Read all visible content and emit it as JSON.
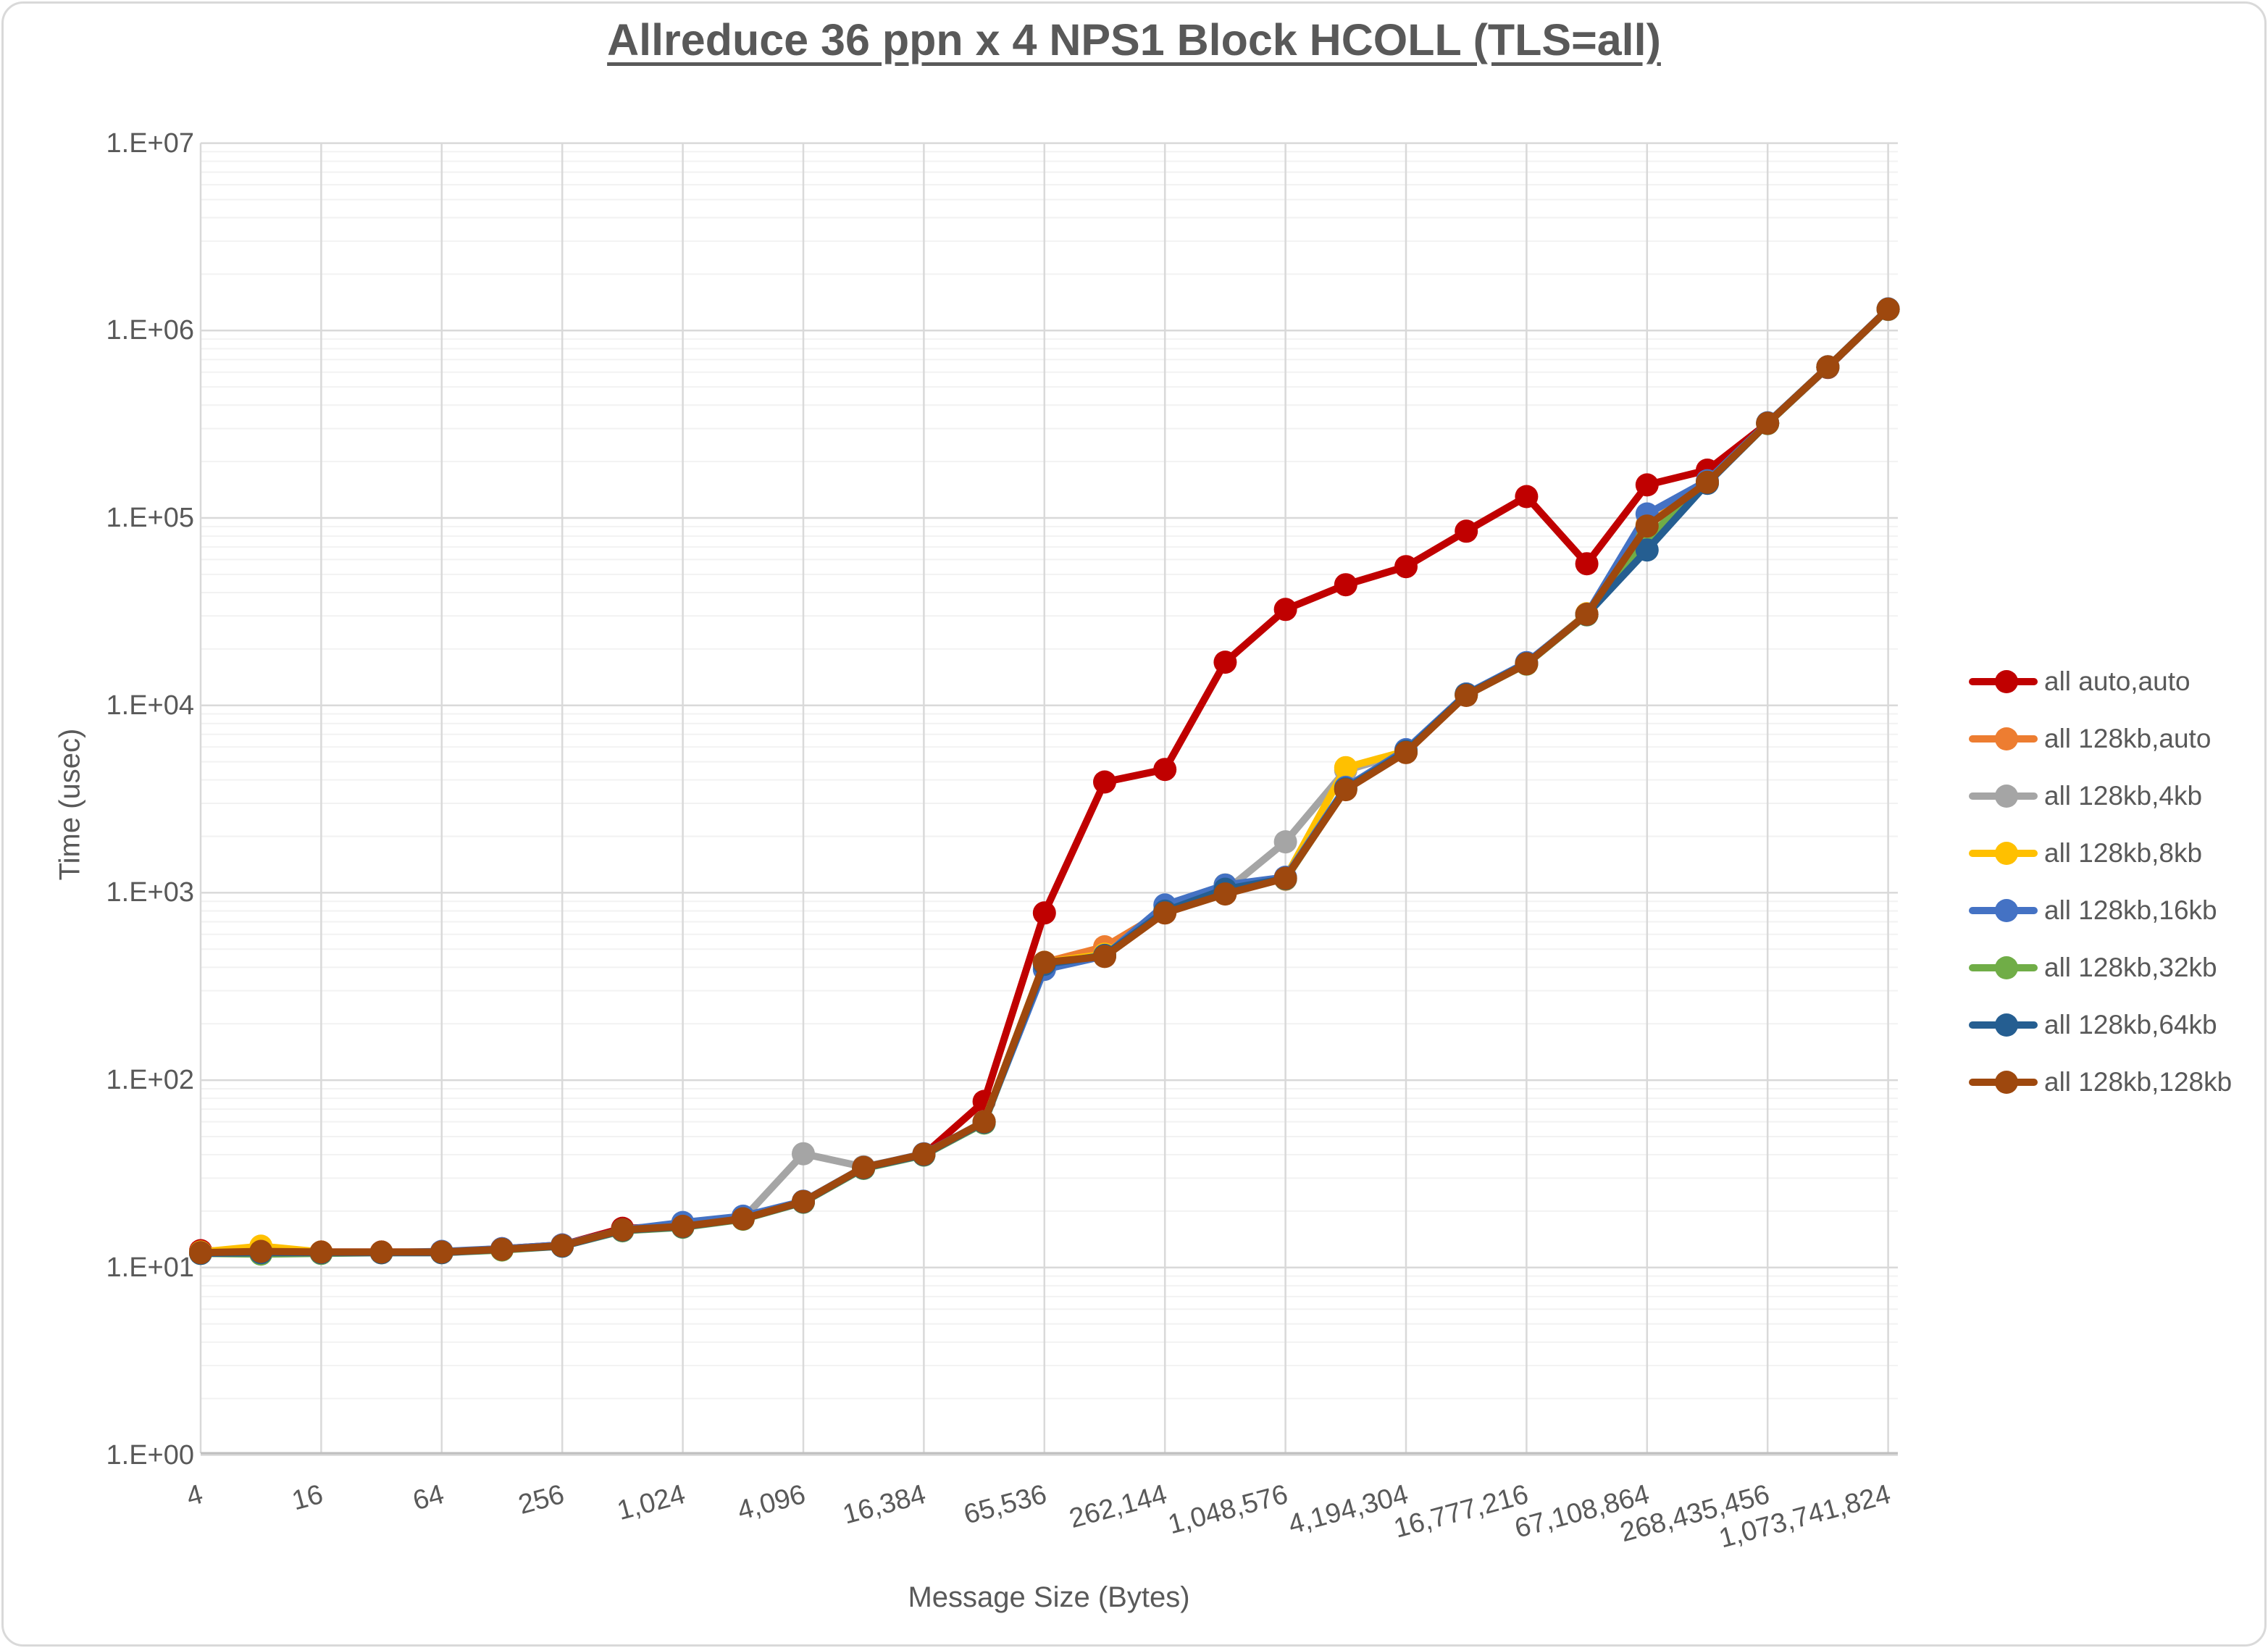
{
  "page": {
    "background": "#FFFFFF",
    "border_color": "#D9D9D9",
    "text_color": "#595959",
    "grid_major_color": "#D9D9D9",
    "grid_minor_color": "#F2F2F2",
    "axis_line_color": "#BFBFBF"
  },
  "chart_data": {
    "type": "line",
    "title": "Allreduce 36 ppn x 4 NPS1 Block HCOLL (TLS=all)",
    "xlabel": "Message Size (Bytes)",
    "ylabel": "Time (usec)",
    "x_scale": "log2_categories",
    "y_scale": "log10",
    "ylim": [
      1,
      10000000
    ],
    "grid": "major_and_minor",
    "legend_position": "right",
    "y_tick_labels": [
      "1.E+00",
      "1.E+01",
      "1.E+02",
      "1.E+03",
      "1.E+04",
      "1.E+05",
      "1.E+06",
      "1.E+07"
    ],
    "x_tick_labels": [
      "4",
      "16",
      "64",
      "256",
      "1,024",
      "4,096",
      "16,384",
      "65,536",
      "262,144",
      "1,048,576",
      "4,194,304",
      "16,777,216",
      "67,108,864",
      "268,435,456",
      "1,073,741,824"
    ],
    "categories": [
      4,
      8,
      16,
      32,
      64,
      128,
      256,
      512,
      1024,
      2048,
      4096,
      8192,
      16384,
      32768,
      65536,
      131072,
      262144,
      524288,
      1048576,
      2097152,
      4194304,
      8388608,
      16777216,
      33554432,
      67108864,
      134217728,
      268435456,
      536870912,
      1073741824
    ],
    "series": [
      {
        "name": "all auto,auto",
        "color": "#C00000",
        "values": [
          12.3,
          12.2,
          12.1,
          12.1,
          12.1,
          12.6,
          13.2,
          16.2,
          16.6,
          18.2,
          22.5,
          34,
          40,
          77,
          780,
          3900,
          4550,
          17000,
          32500,
          44000,
          55000,
          85000,
          130000,
          57000,
          150000,
          180000,
          320000,
          635000,
          1300000
        ]
      },
      {
        "name": "all 128kb,auto",
        "color": "#ED7D31",
        "values": [
          12,
          12.2,
          12,
          12,
          12.1,
          12.5,
          13.1,
          15.8,
          16.5,
          18.2,
          22.4,
          34,
          40,
          60,
          425,
          515,
          800,
          1050,
          1180,
          3600,
          5600,
          11400,
          16800,
          30800,
          92000,
          155000,
          320000,
          640000,
          1300000
        ]
      },
      {
        "name": "all 128kb,4kb",
        "color": "#A5A5A5",
        "values": [
          12,
          12.1,
          12,
          12,
          12.1,
          12.5,
          13.1,
          15.8,
          16.5,
          18.2,
          40.5,
          34.5,
          40,
          60,
          420,
          465,
          790,
          1020,
          1870,
          4500,
          5600,
          11400,
          16700,
          30500,
          91000,
          154000,
          320000,
          640000,
          1295000
        ]
      },
      {
        "name": "all 128kb,8kb",
        "color": "#FFC000",
        "values": [
          12.1,
          13,
          12.1,
          12,
          12.1,
          12.5,
          13.1,
          15.8,
          16.5,
          18.2,
          22.4,
          34,
          40,
          60,
          425,
          470,
          810,
          1100,
          1200,
          4650,
          5700,
          11500,
          16800,
          30800,
          91000,
          155000,
          321000,
          640000,
          1300000
        ]
      },
      {
        "name": "all 128kb,16kb",
        "color": "#4472C4",
        "values": [
          12,
          12.1,
          12,
          12,
          12.2,
          12.6,
          13.2,
          15.9,
          17.4,
          18.8,
          22.6,
          34.2,
          40.5,
          60,
          390,
          460,
          860,
          1100,
          1210,
          3650,
          5800,
          11500,
          16900,
          30600,
          105000,
          158000,
          322000,
          641000,
          1305000
        ]
      },
      {
        "name": "all 128kb,32kb",
        "color": "#70AD47",
        "values": [
          11.9,
          11.8,
          11.9,
          12,
          12,
          12.4,
          13,
          15.7,
          16.4,
          18.1,
          22.3,
          33.8,
          39.8,
          59,
          420,
          462,
          795,
          1040,
          1185,
          3580,
          5650,
          11350,
          16600,
          30400,
          78000,
          154000,
          319000,
          638000,
          1298000
        ]
      },
      {
        "name": "all 128kb,64kb",
        "color": "#255E91",
        "values": [
          11.9,
          12,
          12,
          12,
          12,
          12.5,
          13,
          15.8,
          16.5,
          18.2,
          22.4,
          34,
          40,
          59.5,
          415,
          463,
          798,
          1045,
          1190,
          3590,
          5680,
          11400,
          16700,
          30500,
          67500,
          153000,
          320000,
          639000,
          1300000
        ]
      },
      {
        "name": "all 128kb,128kb",
        "color": "#9E480E",
        "values": [
          12,
          12.2,
          12.1,
          12.1,
          12.1,
          12.5,
          13.1,
          15.9,
          16.6,
          18.2,
          22.5,
          34.2,
          40.3,
          60,
          425,
          457,
          780,
          985,
          1195,
          3550,
          5600,
          11300,
          16650,
          30600,
          90500,
          155000,
          320000,
          640000,
          1300000
        ]
      }
    ]
  }
}
